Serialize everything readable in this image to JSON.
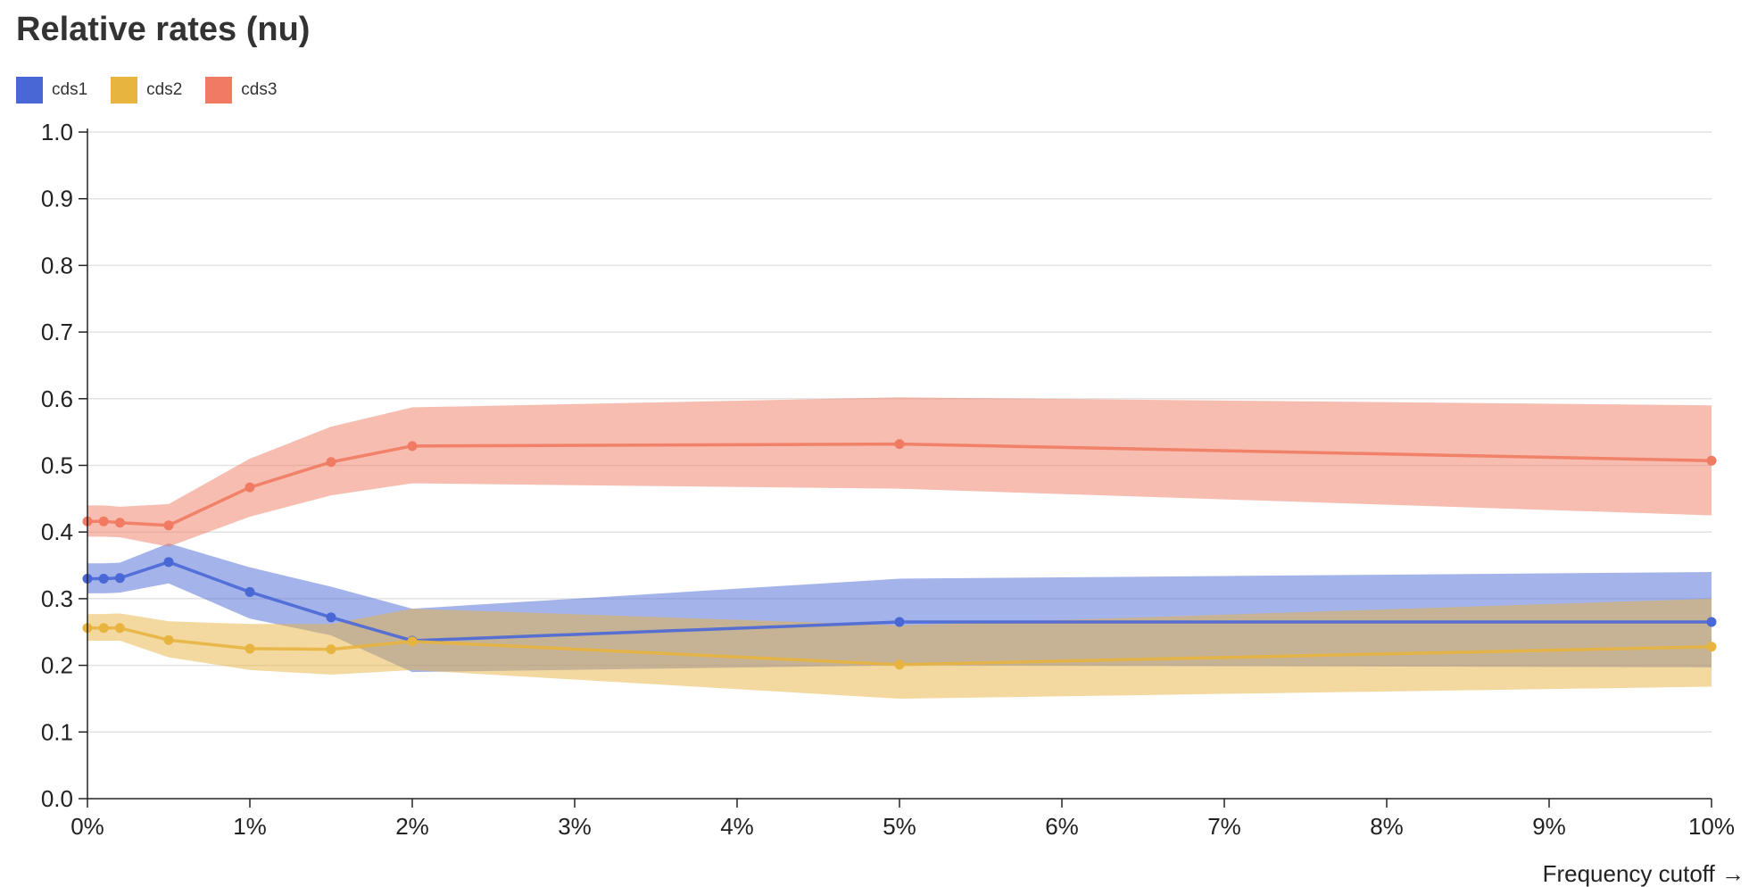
{
  "chart_data": {
    "type": "line",
    "title": "Relative rates (nu)",
    "xlabel": "Frequency cutoff →",
    "ylabel": "",
    "xlim": [
      0,
      10
    ],
    "ylim": [
      0,
      1
    ],
    "x_ticks": [
      0,
      1,
      2,
      3,
      4,
      5,
      6,
      7,
      8,
      9,
      10
    ],
    "x_tick_labels": [
      "0%",
      "1%",
      "2%",
      "3%",
      "4%",
      "5%",
      "6%",
      "7%",
      "8%",
      "9%",
      "10%"
    ],
    "y_ticks": [
      0,
      0.1,
      0.2,
      0.3,
      0.4,
      0.5,
      0.6,
      0.7,
      0.8,
      0.9,
      1.0
    ],
    "y_tick_labels": [
      "0.0",
      "0.1",
      "0.2",
      "0.3",
      "0.4",
      "0.5",
      "0.6",
      "0.7",
      "0.8",
      "0.9",
      "1.0"
    ],
    "grid": "horizontal",
    "legend_position": "top-left",
    "x": [
      0,
      0.1,
      0.2,
      0.5,
      1,
      1.5,
      2,
      5,
      10
    ],
    "series": [
      {
        "name": "cds1",
        "color": "#4a67d6",
        "values": [
          0.33,
          0.33,
          0.331,
          0.355,
          0.31,
          0.272,
          0.237,
          0.265,
          0.265
        ],
        "lower": [
          0.308,
          0.308,
          0.309,
          0.323,
          0.27,
          0.245,
          0.19,
          0.2,
          0.197
        ],
        "upper": [
          0.353,
          0.353,
          0.354,
          0.383,
          0.347,
          0.318,
          0.285,
          0.33,
          0.34
        ]
      },
      {
        "name": "cds2",
        "color": "#e8b440",
        "values": [
          0.256,
          0.256,
          0.256,
          0.238,
          0.225,
          0.224,
          0.236,
          0.201,
          0.228
        ],
        "lower": [
          0.237,
          0.237,
          0.237,
          0.212,
          0.193,
          0.186,
          0.193,
          0.15,
          0.168
        ],
        "upper": [
          0.277,
          0.277,
          0.278,
          0.266,
          0.262,
          0.262,
          0.285,
          0.26,
          0.3
        ]
      },
      {
        "name": "cds3",
        "color": "#f07b62",
        "values": [
          0.416,
          0.416,
          0.414,
          0.41,
          0.467,
          0.505,
          0.529,
          0.532,
          0.507
        ],
        "lower": [
          0.393,
          0.393,
          0.392,
          0.378,
          0.423,
          0.455,
          0.473,
          0.465,
          0.425
        ],
        "upper": [
          0.44,
          0.44,
          0.438,
          0.442,
          0.51,
          0.558,
          0.587,
          0.602,
          0.59
        ]
      }
    ]
  }
}
